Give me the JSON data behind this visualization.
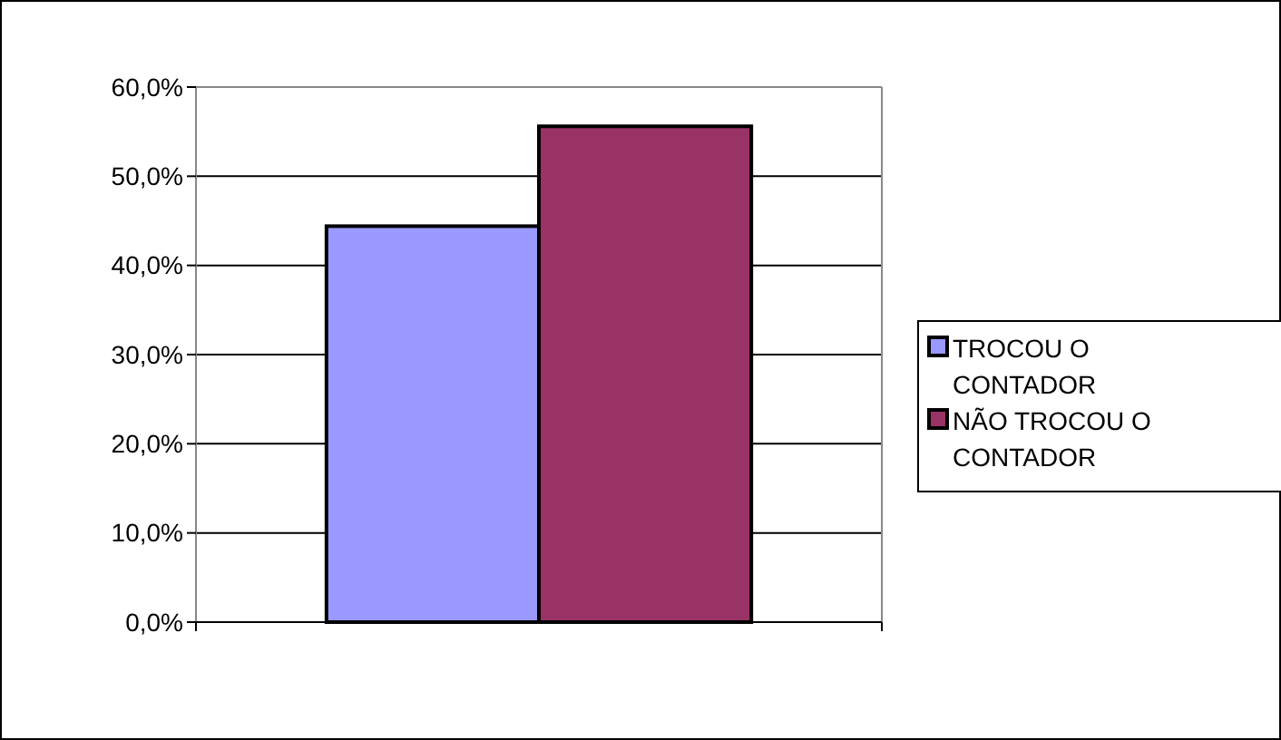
{
  "chart_data": {
    "type": "bar",
    "categories": [
      null
    ],
    "series": [
      {
        "name": "TROCOU O CONTADOR",
        "color": "#9999ff",
        "values": [
          44.4
        ]
      },
      {
        "name": "NÃO TROCOU O CONTADOR",
        "color": "#993366",
        "values": [
          55.6
        ]
      }
    ],
    "ylim": [
      0,
      60
    ],
    "yticks": [
      {
        "value": 0,
        "label": "0,0%"
      },
      {
        "value": 10,
        "label": "10,0%"
      },
      {
        "value": 20,
        "label": "20,0%"
      },
      {
        "value": 30,
        "label": "30,0%"
      },
      {
        "value": 40,
        "label": "40,0%"
      },
      {
        "value": 50,
        "label": "50,0%"
      },
      {
        "value": 60,
        "label": "60,0%"
      }
    ],
    "grid": "y",
    "legend": "right"
  }
}
